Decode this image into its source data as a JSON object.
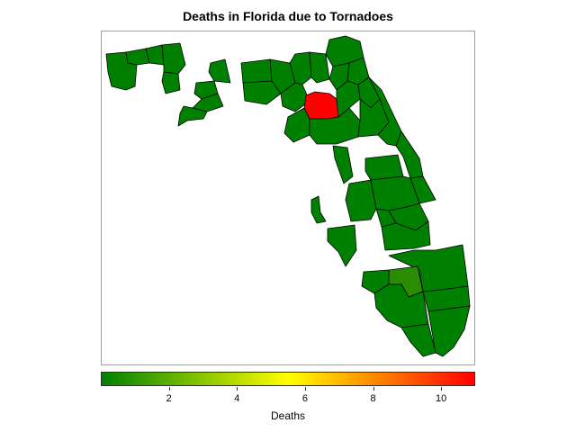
{
  "chart_data": {
    "type": "choropleth",
    "title": "Deaths in Florida due to Tornadoes",
    "color_scale": {
      "title": "Deaths",
      "min": 0,
      "max": 11,
      "ticks": [
        "2",
        "4",
        "6",
        "8",
        "10"
      ],
      "tick_values": [
        2,
        4,
        6,
        8,
        10
      ],
      "stops": [
        "#008000",
        "#ffff00",
        "#ff0000"
      ],
      "placement": "bottom"
    },
    "county_fill_default": "#008000",
    "regions_highlighted": [
      {
        "value": 11,
        "color": "#ff0000"
      },
      {
        "value": 1,
        "color": "#2a8c00"
      }
    ],
    "background_regions_missing": true
  }
}
